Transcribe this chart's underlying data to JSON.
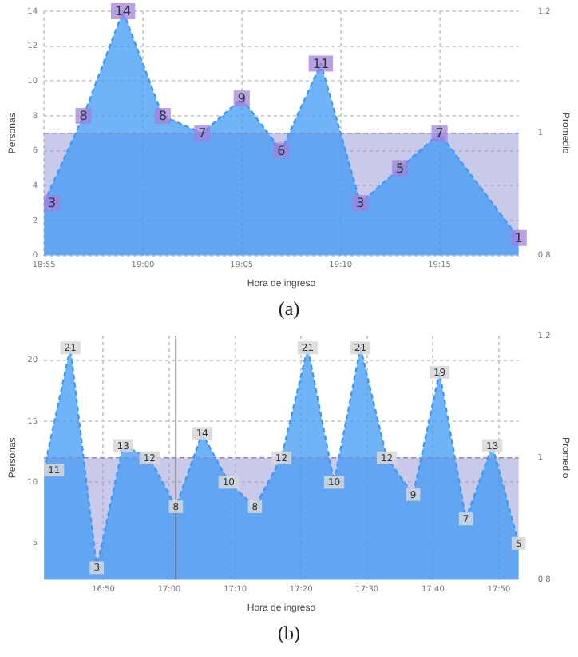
{
  "chart_data": [
    {
      "type": "area",
      "xlabel": "Hora de ingreso",
      "ylabel": "Personas",
      "y2label": "Promedio",
      "annotations": [
        "(a)"
      ],
      "x": [
        18.9167,
        18.95,
        18.9833,
        19.0167,
        19.05,
        19.0833,
        19.1167,
        19.15,
        19.1833,
        19.2167,
        19.25,
        19.3167
      ],
      "series": [
        {
          "color": "#3f9af5",
          "values": [
            3,
            8,
            14,
            8,
            7,
            9,
            6,
            11,
            3,
            5,
            7,
            1
          ]
        }
      ],
      "xlim": [
        18.9167,
        19.3167
      ],
      "xticks": [
        {
          "value": 18.9167,
          "label": "18:55"
        },
        {
          "value": 19,
          "label": "19:00"
        },
        {
          "value": 19.0833,
          "label": "19:05"
        },
        {
          "value": 19.1667,
          "label": "19:10"
        },
        {
          "value": 19.25,
          "label": "19:15"
        }
      ],
      "ylim": [
        0,
        14
      ],
      "yticks": [
        0,
        2,
        4,
        6,
        8,
        10,
        12,
        14
      ],
      "y2lim": [
        0.8,
        1.2
      ],
      "y2ticks": [
        0.8,
        1.0,
        1.2
      ],
      "bands": [
        {
          "axis": "y2",
          "from": 0.8,
          "to": 1.0,
          "color": "#9d9dd8"
        }
      ],
      "ref_lines": [
        {
          "axis": "y2",
          "value": 1.0,
          "color": "#8a8ab8",
          "line_style": "dashed"
        }
      ],
      "data_labels": true,
      "grid": true,
      "legend": false,
      "line_style": "dashed"
    },
    {
      "type": "area",
      "xlabel": "Hora de ingreso",
      "ylabel": "Personas",
      "y2label": "Promedio",
      "annotations": [
        "(b)"
      ],
      "x": [
        16.6833,
        16.75,
        16.8167,
        16.8833,
        16.95,
        17.0167,
        17.0833,
        17.15,
        17.2167,
        17.2833,
        17.35,
        17.4167,
        17.4833,
        17.55,
        17.6167,
        17.6833,
        17.75,
        17.8167,
        17.8833
      ],
      "series": [
        {
          "color": "#3f9af5",
          "values": [
            11,
            21,
            3,
            13,
            12,
            8,
            14,
            10,
            8,
            12,
            21,
            10,
            21,
            12,
            9,
            19,
            7,
            13,
            5
          ]
        }
      ],
      "xlim": [
        16.6833,
        17.8833
      ],
      "xticks": [
        {
          "value": 16.8333,
          "label": "16:50"
        },
        {
          "value": 17,
          "label": "17:00"
        },
        {
          "value": 17.1667,
          "label": "17:10"
        },
        {
          "value": 17.3333,
          "label": "17:20"
        },
        {
          "value": 17.5,
          "label": "17:30"
        },
        {
          "value": 17.6667,
          "label": "17:40"
        },
        {
          "value": 17.8333,
          "label": "17:50"
        }
      ],
      "ylim": [
        2,
        22
      ],
      "yticks": [
        5,
        10,
        15,
        20
      ],
      "y2lim": [
        0.8,
        1.2
      ],
      "y2ticks": [
        0.8,
        1.0,
        1.2
      ],
      "bands": [
        {
          "axis": "y2",
          "from": 0.8,
          "to": 1.0,
          "color": "#9d9dd8"
        }
      ],
      "ref_lines": [
        {
          "axis": "y2",
          "value": 1.0,
          "color": "#8a8ab8",
          "line_style": "dashed"
        },
        {
          "axis": "x",
          "value": 17.0167,
          "color": "#666666"
        }
      ],
      "data_labels": true,
      "grid": true,
      "legend": false,
      "line_style": "dashed"
    }
  ]
}
